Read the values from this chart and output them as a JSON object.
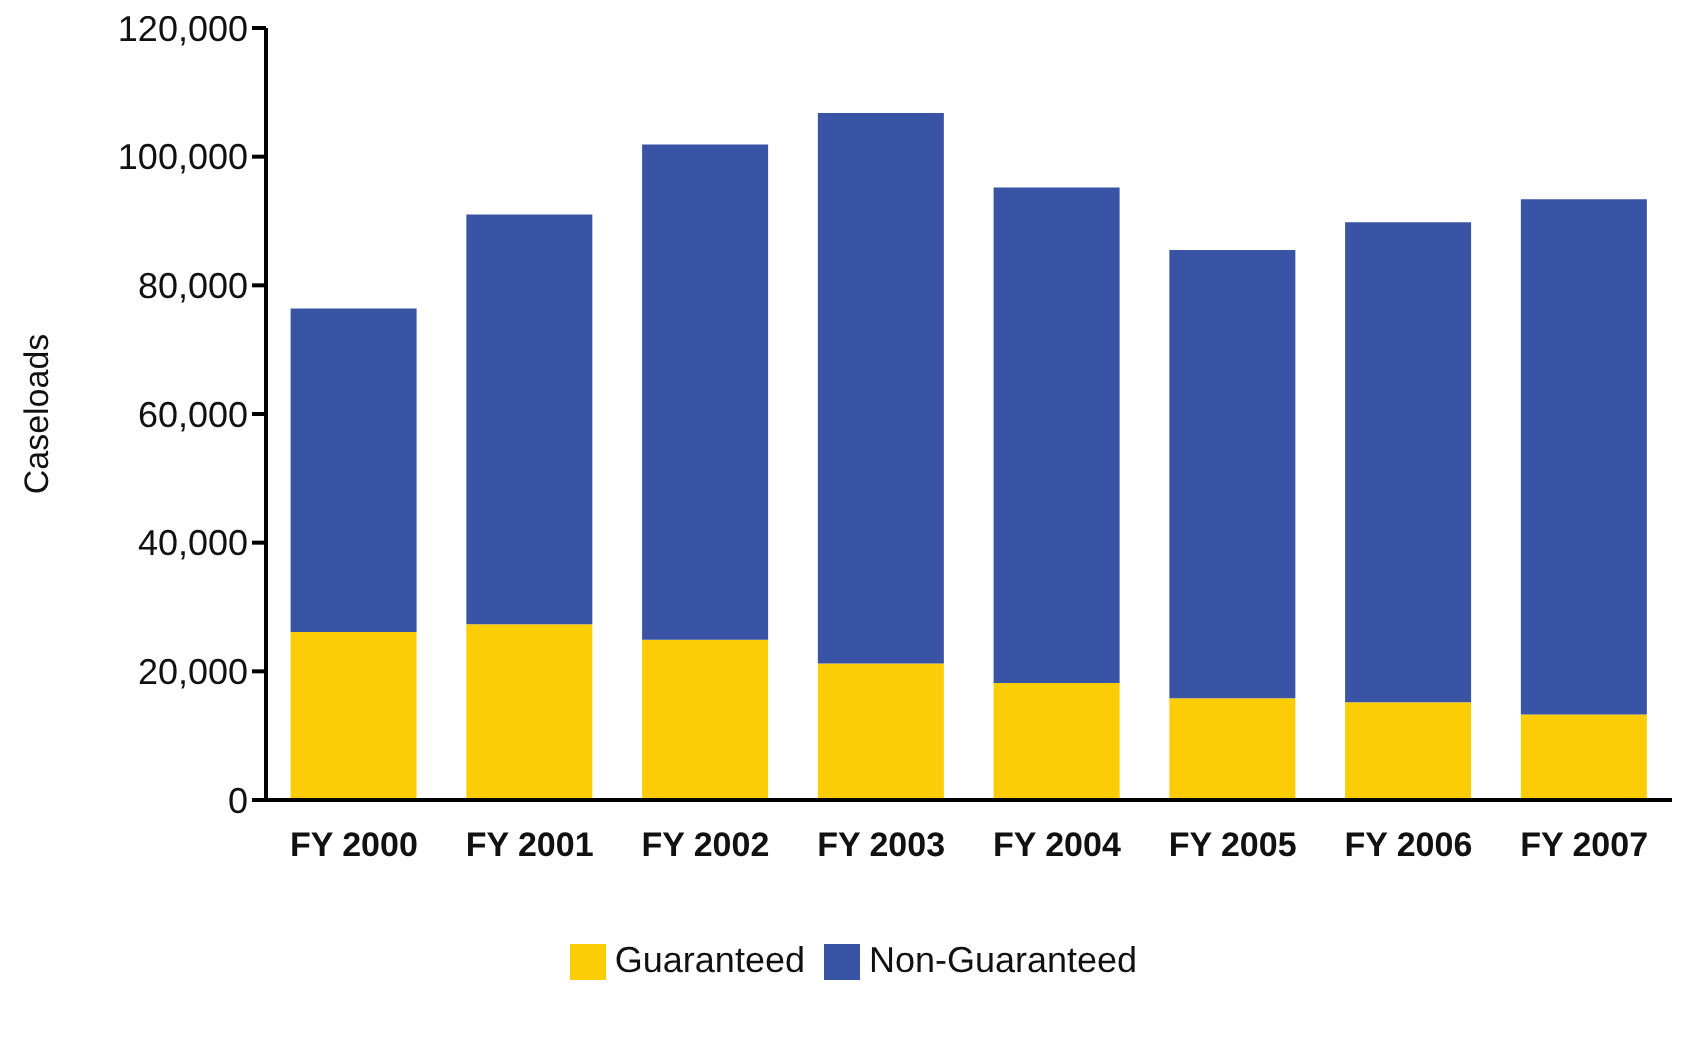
{
  "chart_data": {
    "type": "bar",
    "stacked": true,
    "ylabel": "Caseloads",
    "categories": [
      "FY 2000",
      "FY 2001",
      "FY 2002",
      "FY 2003",
      "FY 2004",
      "FY 2005",
      "FY 2006",
      "FY 2007"
    ],
    "series": [
      {
        "name": "Guaranteed",
        "color": "#fccc07",
        "values": [
          26100,
          27300,
          24900,
          21200,
          18200,
          15800,
          15200,
          13300
        ]
      },
      {
        "name": "Non-Guaranteed",
        "color": "#3954a5",
        "values": [
          50300,
          63700,
          77000,
          85600,
          77000,
          69700,
          74600,
          80100
        ]
      }
    ],
    "ylim": [
      0,
      120000
    ],
    "yticks": [
      {
        "value": 0,
        "label": "0"
      },
      {
        "value": 20000,
        "label": "20,000"
      },
      {
        "value": 40000,
        "label": "40,000"
      },
      {
        "value": 60000,
        "label": "60,000"
      },
      {
        "value": 80000,
        "label": "80,000"
      },
      {
        "value": 100000,
        "label": "100,000"
      },
      {
        "value": 120000,
        "label": "120,000"
      }
    ],
    "grid": false,
    "legend": "bottom"
  }
}
